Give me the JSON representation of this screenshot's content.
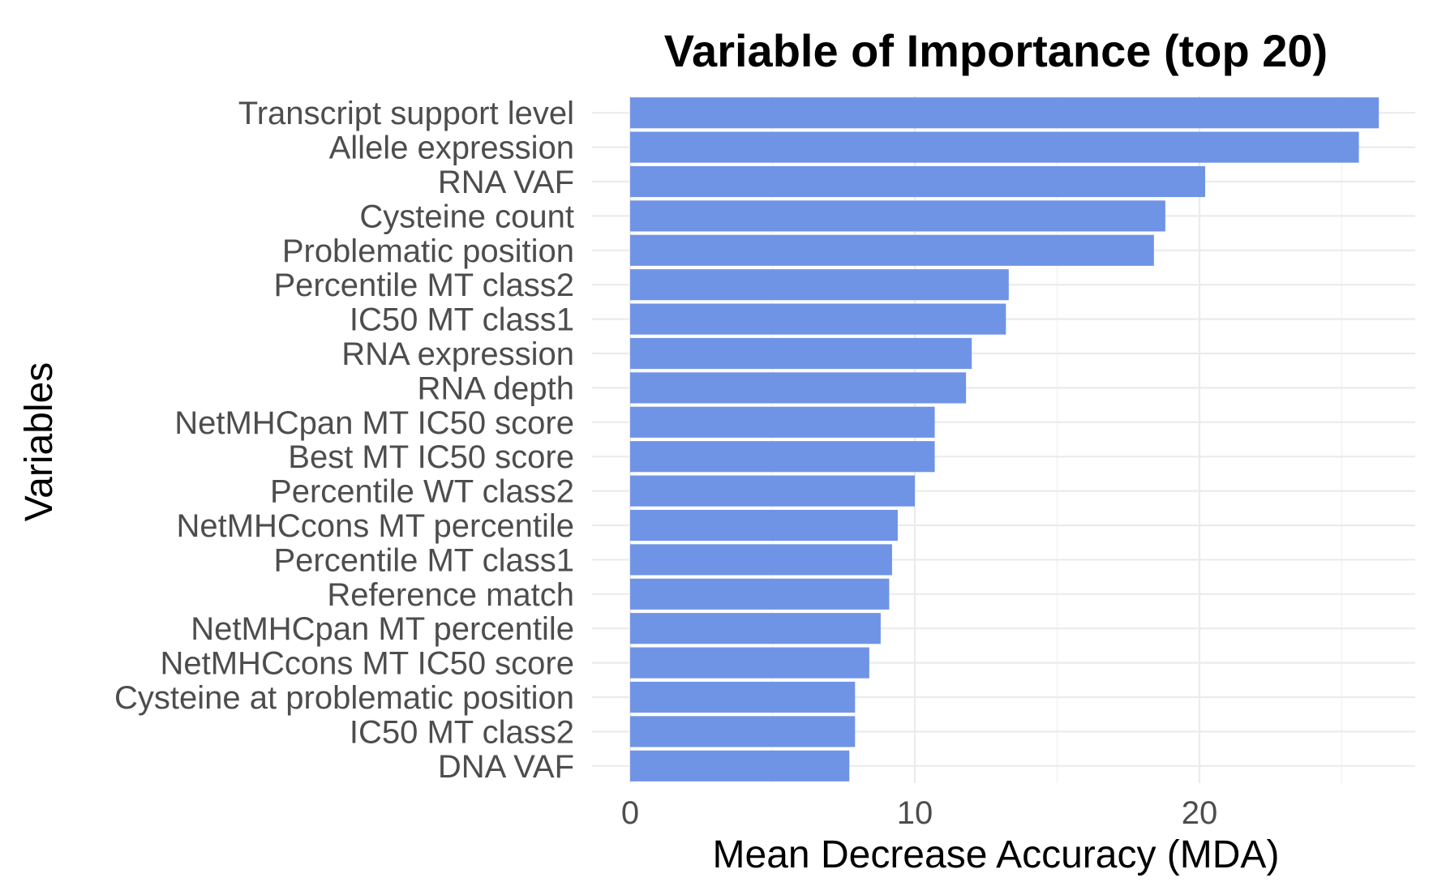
{
  "chart_data": {
    "type": "bar",
    "orientation": "horizontal",
    "title": "Variable of Importance (top 20)",
    "xlabel": "Mean Decrease Accuracy (MDA)",
    "ylabel": "Variables",
    "xlim": [
      0,
      27.5
    ],
    "x_ticks": [
      0,
      10,
      20
    ],
    "x_tick_labels": [
      "0",
      "10",
      "20"
    ],
    "grid": true,
    "legend": "none",
    "bar_color": "#6f94e6",
    "categories": [
      "Transcript support level",
      "Allele expression",
      "RNA VAF",
      "Cysteine count",
      "Problematic position",
      "Percentile MT class2",
      "IC50 MT class1",
      "RNA expression",
      "RNA depth",
      "NetMHCpan MT IC50 score",
      "Best MT IC50 score",
      "Percentile WT class2",
      "NetMHCcons MT percentile",
      "Percentile MT class1",
      "Reference match",
      "NetMHCpan MT percentile",
      "NetMHCcons MT IC50 score",
      "Cysteine at problematic position",
      "IC50 MT class2",
      "DNA VAF"
    ],
    "values": [
      26.3,
      25.6,
      20.2,
      18.8,
      18.4,
      13.3,
      13.2,
      12.0,
      11.8,
      10.7,
      10.7,
      10.0,
      9.4,
      9.2,
      9.1,
      8.8,
      8.4,
      7.9,
      7.9,
      7.7
    ]
  }
}
